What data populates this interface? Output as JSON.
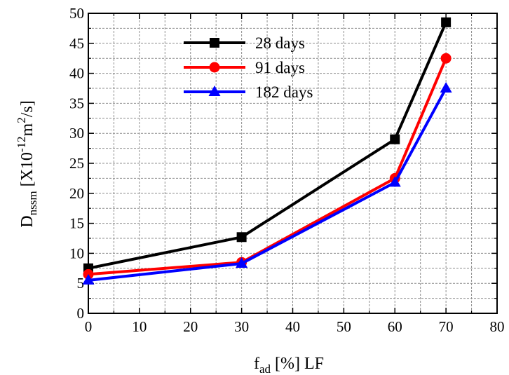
{
  "chart_data": {
    "type": "line",
    "xlabel": {
      "base": "f",
      "sub": "ad",
      "rest": " [%]  LF"
    },
    "ylabel": {
      "base": "D",
      "sub": "nssm",
      "pre": "   [X10",
      "sup1": "-12",
      "mid": "m",
      "sup2": "2",
      "post": "/s]"
    },
    "xlim": [
      0,
      80
    ],
    "ylim": [
      0,
      50
    ],
    "xticks": [
      0,
      10,
      20,
      30,
      40,
      50,
      60,
      70,
      80
    ],
    "yticks": [
      0,
      5,
      10,
      15,
      20,
      25,
      30,
      35,
      40,
      45,
      50
    ],
    "grid": true,
    "legend_position": "top-center",
    "x": [
      0,
      30,
      60,
      70
    ],
    "series": [
      {
        "name": "28 days",
        "values": [
          7.5,
          12.7,
          29.0,
          48.5
        ],
        "color": "#000000",
        "marker": "square"
      },
      {
        "name": "91 days",
        "values": [
          6.5,
          8.5,
          22.5,
          42.5
        ],
        "color": "#ff0000",
        "marker": "circle"
      },
      {
        "name": "182 days",
        "values": [
          5.5,
          8.3,
          21.8,
          37.5
        ],
        "color": "#0000ff",
        "marker": "triangle"
      }
    ]
  }
}
